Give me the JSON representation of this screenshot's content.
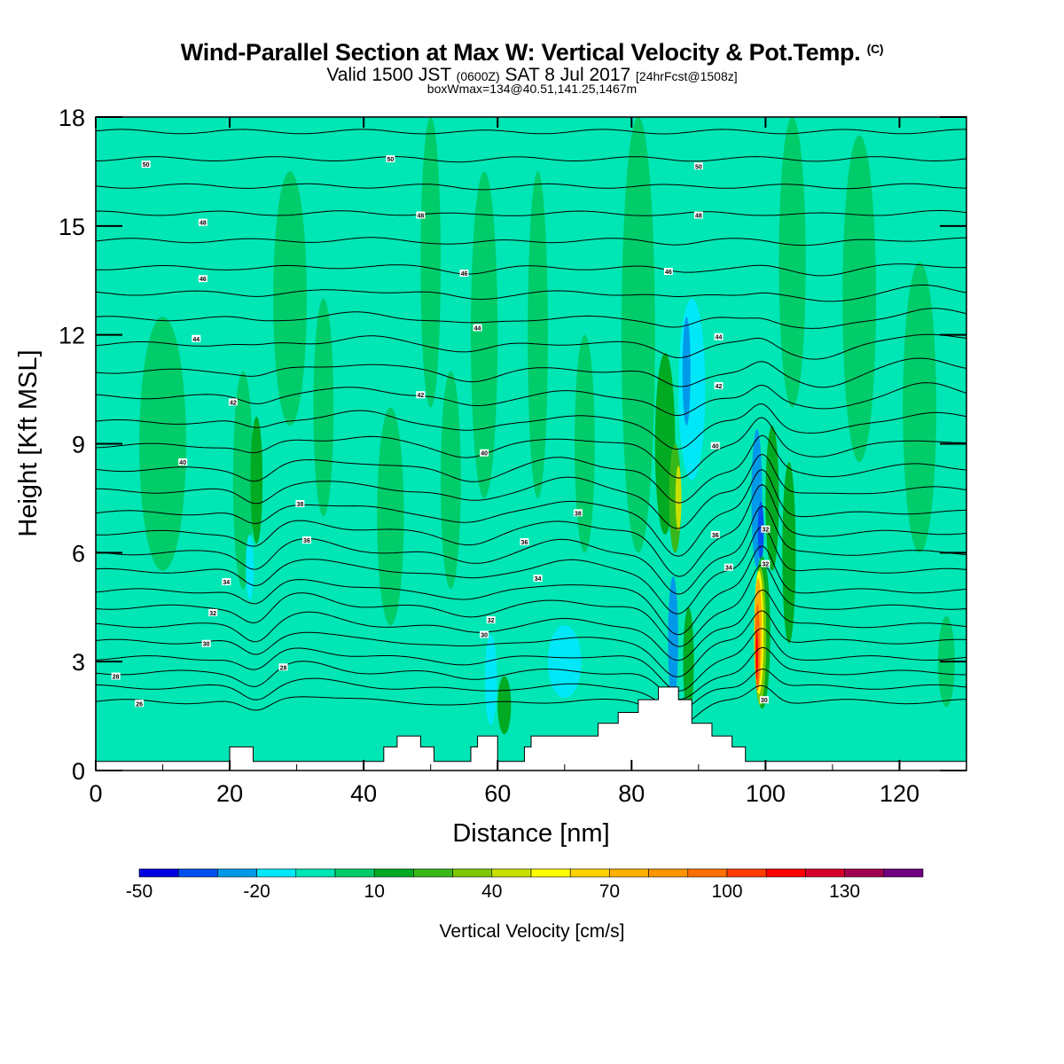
{
  "title": {
    "main": "Wind-Parallel Section at Max W: Vertical Velocity & Pot.Temp.",
    "copyright": "(C)",
    "valid_prefix": "Valid 1500 JST",
    "valid_utc": "(0600Z)",
    "valid_date": "SAT 8 Jul 2017",
    "forecast": "[24hrFcst@1508z]",
    "boxinfo": "boxWmax=134@40.51,141.25,1467m"
  },
  "colors": {
    "background": "#00e6b4",
    "terrain": "#ffffff",
    "contour": "#000000"
  },
  "chart_data": {
    "type": "heatmap",
    "xlabel": "Distance [nm]",
    "ylabel": "Height [Kft MSL]",
    "xlim": [
      0,
      130
    ],
    "ylim": [
      0,
      18
    ],
    "xticks": [
      0,
      20,
      40,
      60,
      80,
      100,
      120
    ],
    "yticks": [
      0,
      3,
      6,
      9,
      12,
      15,
      18
    ],
    "colorbar": {
      "label": "Vertical Velocity [cm/s]",
      "min": -50,
      "step": 10,
      "ticks": [
        -50,
        -20,
        10,
        40,
        70,
        100,
        130
      ],
      "colors": [
        "#0000e0",
        "#0050f0",
        "#0099ea",
        "#00e8f8",
        "#00e6b4",
        "#00cc6a",
        "#00aa22",
        "#38b818",
        "#7cc800",
        "#c8e000",
        "#ffff00",
        "#ffd200",
        "#ffb000",
        "#ff9400",
        "#ff6e00",
        "#ff3c00",
        "#ff0000",
        "#d8002c",
        "#a00050",
        "#700080"
      ]
    },
    "terrain_profile": [
      [
        0,
        0.25
      ],
      [
        20,
        0.25
      ],
      [
        20,
        0.65
      ],
      [
        23.5,
        0.65
      ],
      [
        23.5,
        0.25
      ],
      [
        43,
        0.25
      ],
      [
        43,
        0.65
      ],
      [
        45,
        0.65
      ],
      [
        45,
        0.95
      ],
      [
        48.5,
        0.95
      ],
      [
        48.5,
        0.65
      ],
      [
        50.5,
        0.65
      ],
      [
        50.5,
        0.25
      ],
      [
        56,
        0.25
      ],
      [
        56,
        0.65
      ],
      [
        57,
        0.65
      ],
      [
        57,
        0.95
      ],
      [
        60,
        0.95
      ],
      [
        60,
        0.25
      ],
      [
        64,
        0.25
      ],
      [
        64,
        0.65
      ],
      [
        65,
        0.65
      ],
      [
        65,
        0.95
      ],
      [
        75,
        0.95
      ],
      [
        75,
        1.3
      ],
      [
        78,
        1.3
      ],
      [
        78,
        1.6
      ],
      [
        81,
        1.6
      ],
      [
        81,
        1.95
      ],
      [
        84,
        1.95
      ],
      [
        84,
        2.3
      ],
      [
        87,
        2.3
      ],
      [
        87,
        1.95
      ],
      [
        89,
        1.95
      ],
      [
        89,
        1.3
      ],
      [
        92,
        1.3
      ],
      [
        92,
        0.95
      ],
      [
        95,
        0.95
      ],
      [
        95,
        0.65
      ],
      [
        97,
        0.65
      ],
      [
        97,
        0.25
      ],
      [
        130,
        0.25
      ]
    ],
    "vertical_velocity_cells": [
      {
        "x": 10,
        "y": 9,
        "w": 7,
        "h": 7,
        "value": 0
      },
      {
        "x": 22,
        "y": 8,
        "w": 3,
        "h": 6,
        "value": 0
      },
      {
        "x": 24,
        "y": 8,
        "w": 1.8,
        "h": 3.5,
        "value": 10
      },
      {
        "x": 23,
        "y": 5.6,
        "w": 1.2,
        "h": 1.8,
        "value": -20
      },
      {
        "x": 29,
        "y": 13,
        "w": 5,
        "h": 7,
        "value": 0
      },
      {
        "x": 34,
        "y": 10,
        "w": 3,
        "h": 6,
        "value": 0
      },
      {
        "x": 44,
        "y": 7,
        "w": 4,
        "h": 6,
        "value": 0
      },
      {
        "x": 50,
        "y": 14,
        "w": 3,
        "h": 8,
        "value": 0
      },
      {
        "x": 53,
        "y": 8,
        "w": 3,
        "h": 6,
        "value": 0
      },
      {
        "x": 58,
        "y": 12,
        "w": 4,
        "h": 9,
        "value": 0
      },
      {
        "x": 59,
        "y": 2.5,
        "w": 1.8,
        "h": 2.5,
        "value": -20
      },
      {
        "x": 61,
        "y": 1.8,
        "w": 2,
        "h": 1.6,
        "value": 10
      },
      {
        "x": 66,
        "y": 12,
        "w": 3,
        "h": 9,
        "value": 0
      },
      {
        "x": 70,
        "y": 3,
        "w": 5,
        "h": 2,
        "value": -20
      },
      {
        "x": 73,
        "y": 9,
        "w": 3,
        "h": 6,
        "value": 0
      },
      {
        "x": 81,
        "y": 12,
        "w": 5,
        "h": 12,
        "value": 0
      },
      {
        "x": 85,
        "y": 9,
        "w": 3,
        "h": 5,
        "value": 10
      },
      {
        "x": 86.5,
        "y": 7.5,
        "w": 1.8,
        "h": 3,
        "value": 20
      },
      {
        "x": 87,
        "y": 7.5,
        "w": 0.9,
        "h": 1.8,
        "value": 40
      },
      {
        "x": 89,
        "y": 10.5,
        "w": 4,
        "h": 5,
        "value": -20
      },
      {
        "x": 88.2,
        "y": 11,
        "w": 1.2,
        "h": 3,
        "value": -30
      },
      {
        "x": 86.2,
        "y": 3.6,
        "w": 1.5,
        "h": 3.5,
        "value": -30
      },
      {
        "x": 88.5,
        "y": 3,
        "w": 1.6,
        "h": 3,
        "value": 10
      },
      {
        "x": 98.7,
        "y": 7.5,
        "w": 1.6,
        "h": 3.8,
        "value": -30
      },
      {
        "x": 99.3,
        "y": 6.6,
        "w": 0.9,
        "h": 1.6,
        "value": -40
      },
      {
        "x": 101,
        "y": 7.5,
        "w": 2,
        "h": 4,
        "value": 10
      },
      {
        "x": 103.5,
        "y": 6,
        "w": 2,
        "h": 5,
        "value": 10
      },
      {
        "x": 99.5,
        "y": 3.8,
        "w": 2.4,
        "h": 4.2,
        "value": 10
      },
      {
        "x": 99.2,
        "y": 3.7,
        "w": 1.8,
        "h": 3.8,
        "value": 30
      },
      {
        "x": 99,
        "y": 3.8,
        "w": 1.4,
        "h": 3.4,
        "value": 50
      },
      {
        "x": 98.9,
        "y": 3.8,
        "w": 1.1,
        "h": 3,
        "value": 70
      },
      {
        "x": 98.8,
        "y": 3.4,
        "w": 0.7,
        "h": 2.4,
        "value": 90
      },
      {
        "x": 98.7,
        "y": 3.2,
        "w": 0.35,
        "h": 1.4,
        "value": 110
      },
      {
        "x": 104,
        "y": 14,
        "w": 4,
        "h": 8,
        "value": 0
      },
      {
        "x": 114,
        "y": 13,
        "w": 5,
        "h": 9,
        "value": 0
      },
      {
        "x": 123,
        "y": 10,
        "w": 5,
        "h": 8,
        "value": 0
      },
      {
        "x": 127,
        "y": 3,
        "w": 2.5,
        "h": 2.5,
        "value": 0
      }
    ],
    "theta_contours": {
      "levels": [
        25,
        26,
        27,
        28,
        29,
        30,
        31,
        32,
        33,
        34,
        35,
        36,
        37,
        38,
        39,
        40,
        41,
        42,
        43,
        44,
        45,
        46,
        47,
        48,
        49,
        50,
        51
      ],
      "base_heights": [
        1.9,
        2.3,
        2.7,
        3.1,
        3.55,
        4.0,
        4.5,
        4.95,
        5.5,
        6.0,
        6.55,
        7.1,
        7.7,
        8.3,
        8.95,
        9.6,
        10.3,
        11.0,
        11.75,
        12.45,
        13.15,
        13.85,
        14.6,
        15.35,
        16.1,
        16.85,
        17.6
      ]
    },
    "contour_labels": [
      {
        "x": 7.5,
        "y": 16.7,
        "text": "50"
      },
      {
        "x": 44,
        "y": 16.85,
        "text": "50"
      },
      {
        "x": 90,
        "y": 16.65,
        "text": "50"
      },
      {
        "x": 16,
        "y": 15.1,
        "text": "48"
      },
      {
        "x": 48.5,
        "y": 15.3,
        "text": "48"
      },
      {
        "x": 90,
        "y": 15.3,
        "text": "48"
      },
      {
        "x": 16,
        "y": 13.55,
        "text": "46"
      },
      {
        "x": 55,
        "y": 13.7,
        "text": "46"
      },
      {
        "x": 85.5,
        "y": 13.75,
        "text": "46"
      },
      {
        "x": 15,
        "y": 11.9,
        "text": "44"
      },
      {
        "x": 57,
        "y": 12.2,
        "text": "44"
      },
      {
        "x": 93,
        "y": 11.95,
        "text": "44"
      },
      {
        "x": 20.5,
        "y": 10.15,
        "text": "42"
      },
      {
        "x": 48.5,
        "y": 10.35,
        "text": "42"
      },
      {
        "x": 93,
        "y": 10.6,
        "text": "42"
      },
      {
        "x": 13,
        "y": 8.5,
        "text": "40"
      },
      {
        "x": 58,
        "y": 8.75,
        "text": "40"
      },
      {
        "x": 92.5,
        "y": 8.95,
        "text": "40"
      },
      {
        "x": 30.5,
        "y": 7.35,
        "text": "38"
      },
      {
        "x": 72,
        "y": 7.1,
        "text": "38"
      },
      {
        "x": 31.5,
        "y": 6.35,
        "text": "36"
      },
      {
        "x": 64,
        "y": 6.3,
        "text": "36"
      },
      {
        "x": 92.5,
        "y": 6.5,
        "text": "36"
      },
      {
        "x": 19.5,
        "y": 5.2,
        "text": "34"
      },
      {
        "x": 66,
        "y": 5.3,
        "text": "34"
      },
      {
        "x": 94.5,
        "y": 5.6,
        "text": "34"
      },
      {
        "x": 100,
        "y": 6.65,
        "text": "32"
      },
      {
        "x": 100,
        "y": 5.7,
        "text": "32"
      },
      {
        "x": 17.5,
        "y": 4.35,
        "text": "32"
      },
      {
        "x": 59,
        "y": 4.15,
        "text": "32"
      },
      {
        "x": 16.5,
        "y": 3.5,
        "text": "30"
      },
      {
        "x": 58,
        "y": 3.75,
        "text": "30"
      },
      {
        "x": 28,
        "y": 2.85,
        "text": "28"
      },
      {
        "x": 3,
        "y": 2.6,
        "text": "28"
      },
      {
        "x": 6.5,
        "y": 1.85,
        "text": "26"
      },
      {
        "x": 99.8,
        "y": 1.95,
        "text": "30"
      }
    ]
  }
}
